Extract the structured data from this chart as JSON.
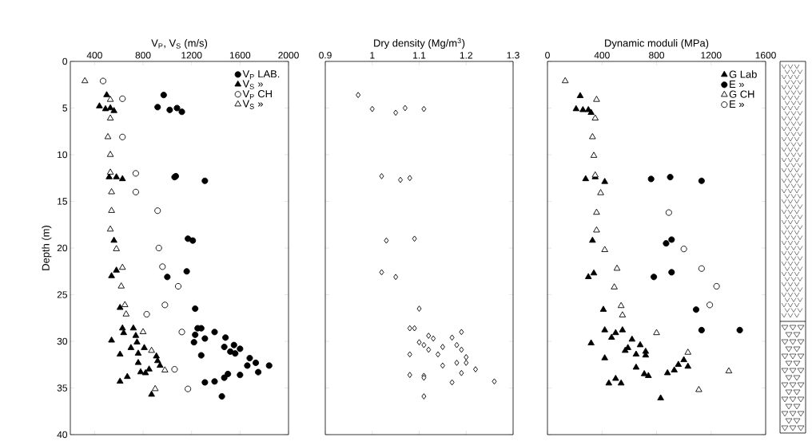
{
  "chart_data": [
    {
      "type": "scatter",
      "xlabel": "V$_{P}$, V$_{S}$ (m/s)",
      "ylabel": "Depth (m)",
      "xlim": [
        200,
        2000
      ],
      "xticks": [
        400,
        800,
        1200,
        1600,
        2000
      ],
      "ylim": [
        40,
        0
      ],
      "yticks": [
        0,
        5,
        10,
        15,
        20,
        25,
        30,
        35,
        40
      ],
      "legend": "top right",
      "series": [
        {
          "name": "V$_{P}$ LAB.",
          "color": "#000000",
          "marker": "circle",
          "x": [
            970,
            920,
            1020,
            1080,
            1120,
            1060,
            1070,
            1310,
            1170,
            1210,
            1160,
            1000,
            1230,
            1250,
            1280,
            1390,
            1230,
            1310,
            1220,
            1480,
            1470,
            1550,
            1520,
            1600,
            1560,
            1280,
            1680,
            1730,
            1840,
            1660,
            1750,
            1600,
            1500,
            1470,
            1390,
            1310,
            1450
          ],
          "values": [
            3.6,
            4.9,
            5.2,
            5.0,
            5.4,
            12.4,
            12.3,
            12.8,
            19.0,
            19.2,
            22.5,
            23.1,
            26.5,
            28.6,
            28.6,
            29.0,
            29.3,
            29.7,
            30.1,
            29.6,
            30.6,
            30.4,
            31.1,
            30.8,
            31.3,
            31.5,
            31.8,
            32.3,
            32.6,
            32.6,
            33.3,
            33.6,
            33.5,
            33.9,
            34.3,
            34.4,
            35.9
          ]
        },
        {
          "name": "V$_{S}$  »",
          "color": "#000000",
          "marker": "triangle",
          "x": [
            500,
            440,
            490,
            530,
            560,
            520,
            580,
            630,
            560,
            580,
            540,
            610,
            630,
            720,
            640,
            540,
            740,
            750,
            700,
            810,
            760,
            610,
            910,
            920,
            760,
            850,
            780,
            820,
            940,
            670,
            610,
            870
          ],
          "values": [
            3.6,
            4.8,
            5.1,
            5.0,
            5.3,
            12.4,
            12.4,
            12.6,
            19.2,
            22.4,
            23.0,
            26.4,
            28.6,
            28.6,
            29.1,
            29.9,
            29.4,
            30.1,
            30.7,
            30.7,
            31.3,
            31.4,
            31.6,
            32.1,
            32.3,
            33.0,
            33.3,
            33.4,
            32.6,
            33.8,
            34.3,
            35.7
          ]
        },
        {
          "name": "V$_{P}$ CH",
          "color": "#ffffff",
          "marker": "circle",
          "x": [
            470,
            630,
            630,
            740,
            740,
            920,
            930,
            960,
            1090,
            980,
            830,
            1120,
            1060,
            1170
          ],
          "values": [
            2.1,
            4.0,
            8.1,
            12.0,
            14.0,
            16.0,
            20.0,
            22.0,
            24.1,
            26.1,
            27.1,
            29.0,
            33.0,
            35.1
          ]
        },
        {
          "name": "V$_{S}$  »",
          "color": "#ffffff",
          "marker": "triangle",
          "x": [
            320,
            530,
            530,
            510,
            530,
            530,
            540,
            540,
            530,
            580,
            630,
            620,
            650,
            660,
            800,
            870,
            980,
            900
          ],
          "values": [
            2.1,
            4.1,
            6.1,
            8.1,
            10.0,
            11.9,
            14.0,
            16.0,
            18.0,
            20.1,
            22.1,
            24.1,
            26.1,
            27.1,
            29.0,
            31.0,
            33.1,
            35.1
          ]
        }
      ]
    },
    {
      "type": "scatter",
      "xlabel": "Dry density (Mg/m$^{3}$)",
      "xlim": [
        0.9,
        1.3
      ],
      "xticks": [
        0.9,
        1,
        1.1,
        1.2,
        1.3
      ],
      "ylim": [
        40,
        0
      ],
      "yticks": [
        0,
        5,
        10,
        15,
        20,
        25,
        30,
        35,
        40
      ],
      "tick_labels": "x",
      "series": [
        {
          "color": "#ffffff",
          "marker": "diamond",
          "x": [
            0.97,
            1.0,
            1.05,
            1.07,
            1.11,
            1.02,
            1.06,
            1.08,
            1.03,
            1.09,
            1.02,
            1.05,
            1.1,
            1.08,
            1.09,
            1.12,
            1.13,
            1.17,
            1.19,
            1.1,
            1.11,
            1.15,
            1.18,
            1.12,
            1.19,
            1.08,
            1.14,
            1.2,
            1.18,
            1.2,
            1.15,
            1.22,
            1.19,
            1.08,
            1.11,
            1.11,
            1.17,
            1.26,
            1.11
          ],
          "values": [
            3.6,
            5.1,
            5.5,
            5.0,
            5.1,
            12.3,
            12.7,
            12.5,
            19.2,
            19.0,
            22.6,
            23.1,
            26.5,
            28.6,
            28.6,
            29.4,
            29.7,
            29.6,
            29.0,
            30.1,
            30.4,
            30.6,
            30.4,
            30.9,
            30.9,
            31.4,
            31.4,
            31.7,
            32.3,
            32.3,
            32.6,
            33.0,
            33.4,
            33.6,
            33.7,
            33.9,
            34.4,
            34.3,
            35.9
          ]
        }
      ]
    },
    {
      "type": "scatter",
      "xlabel": "Dynamic moduli (MPa)",
      "xlim": [
        0,
        1600
      ],
      "xticks": [
        0,
        400,
        800,
        1200,
        1600
      ],
      "ylim": [
        40,
        0
      ],
      "yticks": [
        0,
        5,
        10,
        15,
        20,
        25,
        30,
        35,
        40
      ],
      "tick_labels": "x",
      "legend": "top right",
      "series": [
        {
          "name": "G Lab",
          "color": "#000000",
          "marker": "triangle",
          "x": [
            240,
            210,
            260,
            300,
            320,
            280,
            350,
            420,
            330,
            340,
            300,
            410,
            420,
            320,
            470,
            500,
            550,
            620,
            590,
            570,
            650,
            680,
            720,
            720,
            420,
            650,
            710,
            740,
            500,
            450,
            540,
            880,
            930,
            960,
            1000,
            1030,
            830
          ],
          "values": [
            3.7,
            5.1,
            5.2,
            5.2,
            5.5,
            12.6,
            12.4,
            12.9,
            19.2,
            22.7,
            23.1,
            26.6,
            28.8,
            30.2,
            29.6,
            29.1,
            28.8,
            29.8,
            30.7,
            31.0,
            31.4,
            30.4,
            31.1,
            31.5,
            31.8,
            32.8,
            33.5,
            33.7,
            34.0,
            34.5,
            34.5,
            33.4,
            33.1,
            32.5,
            32.0,
            32.7,
            36.1
          ]
        },
        {
          "name": "E  »",
          "color": "#000000",
          "marker": "circle",
          "x": [
            760,
            900,
            1130,
            870,
            910,
            780,
            910,
            1090,
            1130,
            1410
          ],
          "values": [
            12.6,
            12.4,
            12.8,
            19.5,
            19.1,
            23.1,
            22.6,
            26.6,
            28.8,
            28.8
          ]
        },
        {
          "name": "G CH",
          "color": "#ffffff",
          "marker": "triangle",
          "x": [
            130,
            360,
            350,
            330,
            340,
            350,
            390,
            360,
            360,
            420,
            510,
            490,
            540,
            550,
            800,
            1030,
            1330,
            1110
          ],
          "values": [
            2.1,
            4.1,
            6.1,
            8.1,
            10.1,
            12.2,
            14.1,
            16.2,
            18.1,
            20.2,
            22.2,
            24.2,
            26.2,
            27.2,
            29.1,
            31.2,
            33.2,
            35.2
          ]
        },
        {
          "name": "E  »",
          "color": "#ffffff",
          "marker": "circle",
          "x": [
            890,
            1000,
            1130,
            1240,
            1190
          ],
          "values": [
            16.2,
            20.1,
            22.2,
            24.1,
            26.1
          ]
        }
      ]
    }
  ]
}
